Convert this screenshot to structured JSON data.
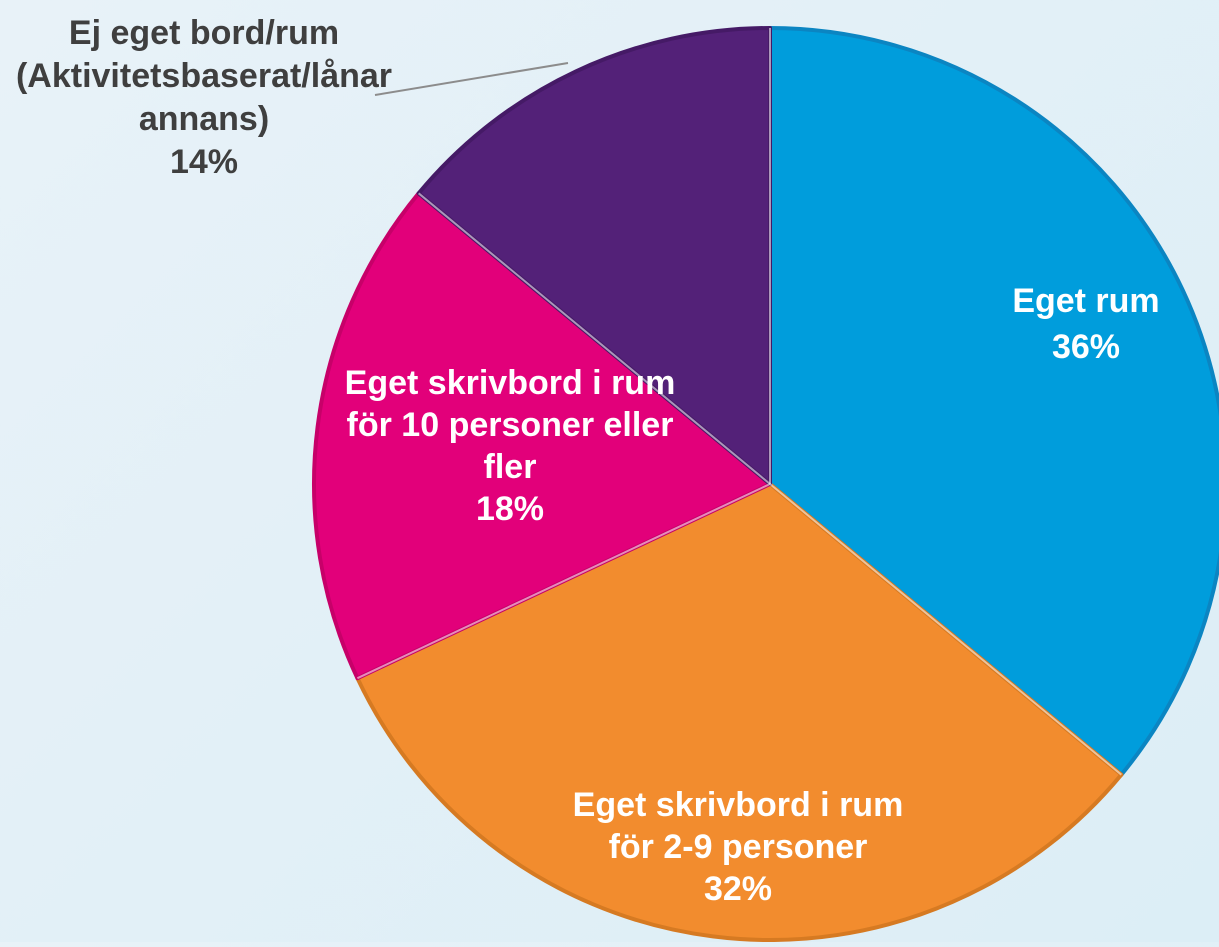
{
  "chart_data": {
    "type": "pie",
    "slices": [
      {
        "label_lines": [
          "Eget rum"
        ],
        "percent_text": "36%",
        "value": 36,
        "color": "#009ddc",
        "edge_color": "#0b85c2",
        "label_color": "#ffffff"
      },
      {
        "label_lines": [
          "Eget skrivbord i rum",
          "för 2-9 personer"
        ],
        "percent_text": "32%",
        "value": 32,
        "color": "#f28c2e",
        "edge_color": "#d67a22",
        "label_color": "#ffffff"
      },
      {
        "label_lines": [
          "Eget skrivbord i rum",
          "för 10 personer eller",
          "fler"
        ],
        "percent_text": "18%",
        "value": 18,
        "color": "#e2007a",
        "edge_color": "#c70069",
        "label_color": "#ffffff"
      },
      {
        "label_lines": [
          "Ej eget bord/rum",
          "(Aktivitetsbaserat/lånar",
          "annans)"
        ],
        "percent_text": "14%",
        "value": 14,
        "color": "#532178",
        "edge_color": "#451a66",
        "label_color": "#3f3f3f"
      }
    ],
    "start_angle": "12 o'clock",
    "direction": "clockwise"
  }
}
